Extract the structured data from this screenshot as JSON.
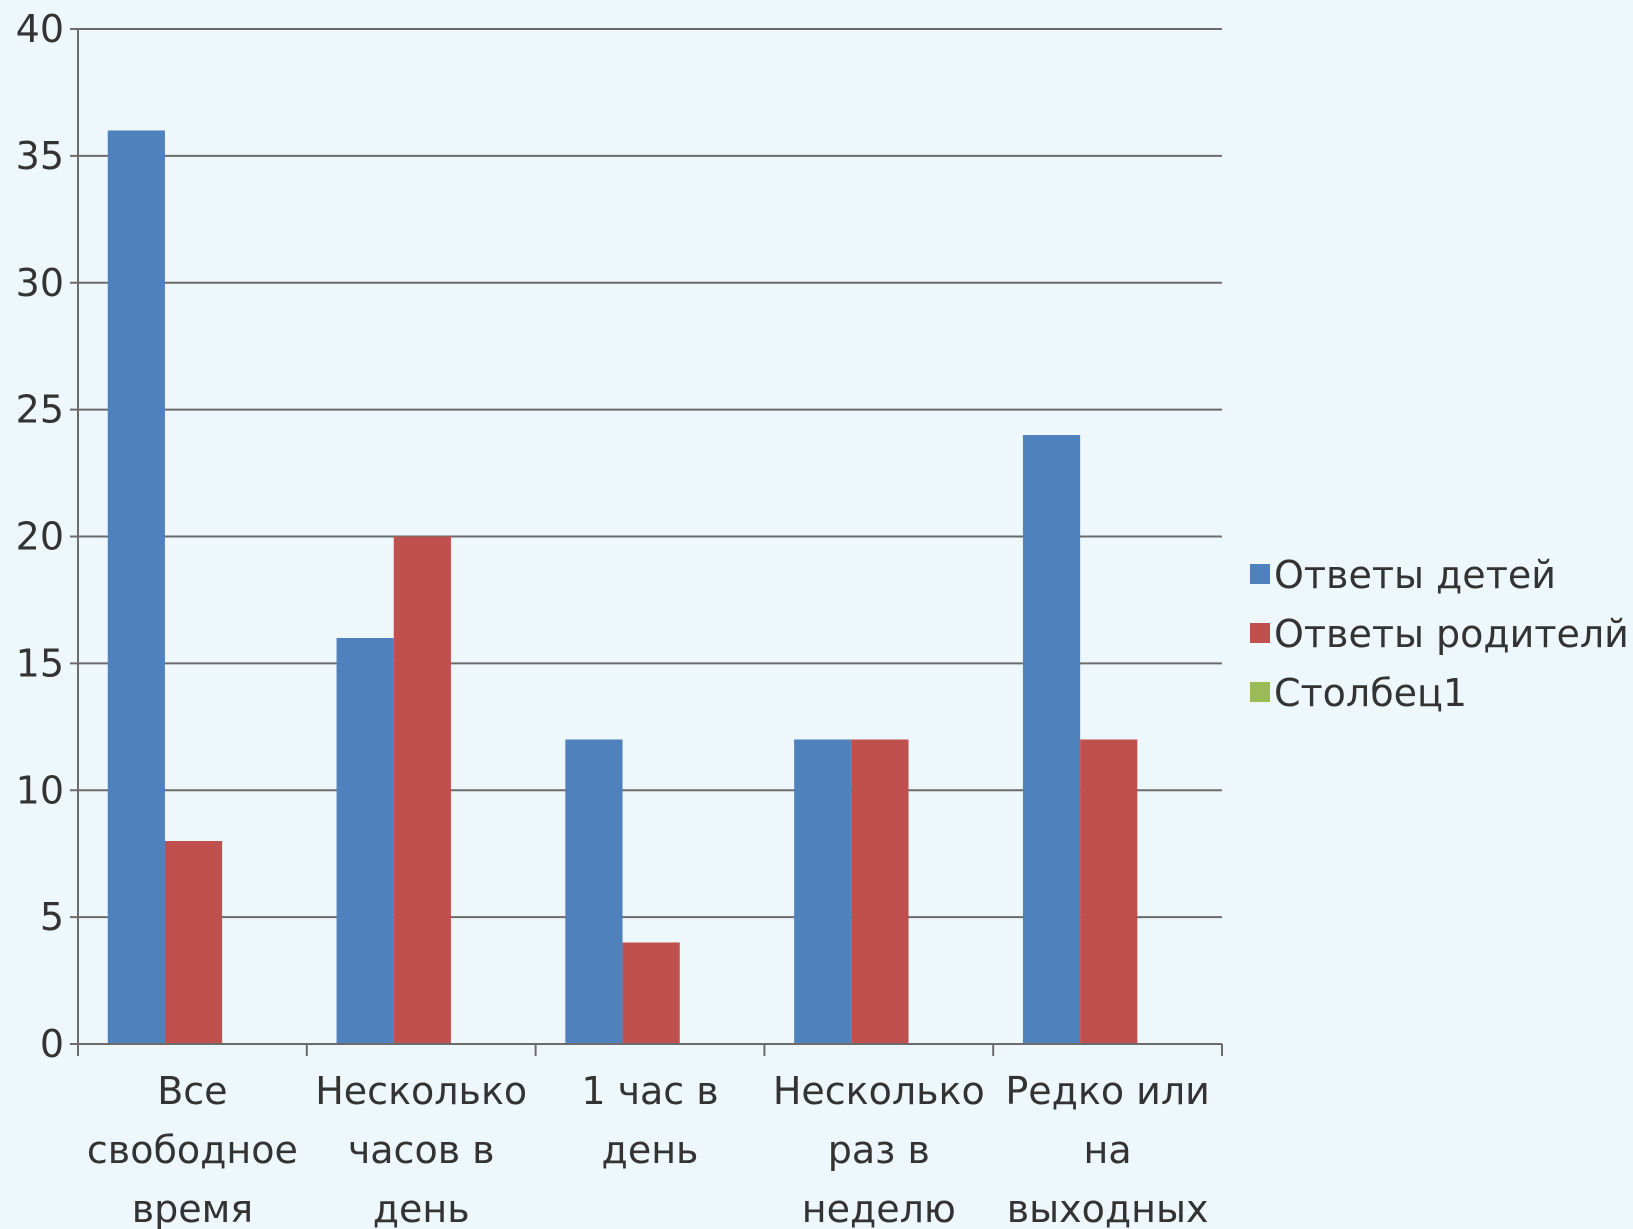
{
  "chart_data": {
    "type": "bar",
    "categories": [
      [
        "Все",
        "свободное",
        "время"
      ],
      [
        "Несколько",
        "часов в",
        "день"
      ],
      [
        "1 час в",
        "день"
      ],
      [
        "Несколько",
        "раз в",
        "неделю"
      ],
      [
        "Редко или",
        "на",
        "выходных"
      ]
    ],
    "series": [
      {
        "name": "Ответы детей",
        "values": [
          36,
          16,
          12,
          12,
          24
        ],
        "color": "#4f81bd"
      },
      {
        "name": "Ответы родителй",
        "values": [
          8,
          20,
          4,
          12,
          12
        ],
        "color": "#c0504d"
      },
      {
        "name": "Столбец1",
        "values": [
          null,
          null,
          null,
          null,
          null
        ],
        "color": "#9bbb59"
      }
    ],
    "yticks": [
      "0",
      "5",
      "10",
      "15",
      "20",
      "25",
      "30",
      "35",
      "40"
    ],
    "ylim": [
      0,
      40
    ],
    "grid": true,
    "legend_position": "right"
  }
}
